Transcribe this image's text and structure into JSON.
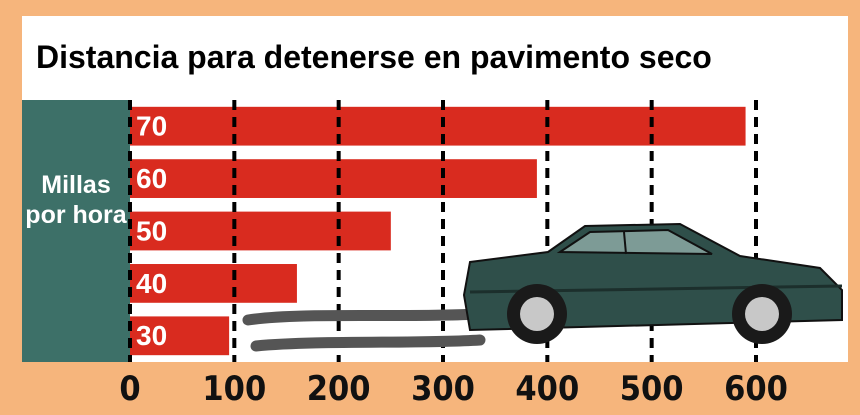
{
  "chart_data": {
    "type": "bar",
    "orientation": "horizontal",
    "title": "Distancia para detenerse en pavimento seco",
    "y_label": "Millas por hora",
    "categories": [
      "70",
      "60",
      "50",
      "40",
      "30"
    ],
    "values": [
      590,
      390,
      250,
      160,
      95
    ],
    "color": "#d92b1f",
    "xlim": [
      0,
      600
    ],
    "xticks": [
      0,
      100,
      200,
      300,
      400,
      500,
      600
    ],
    "grid": true
  }
}
